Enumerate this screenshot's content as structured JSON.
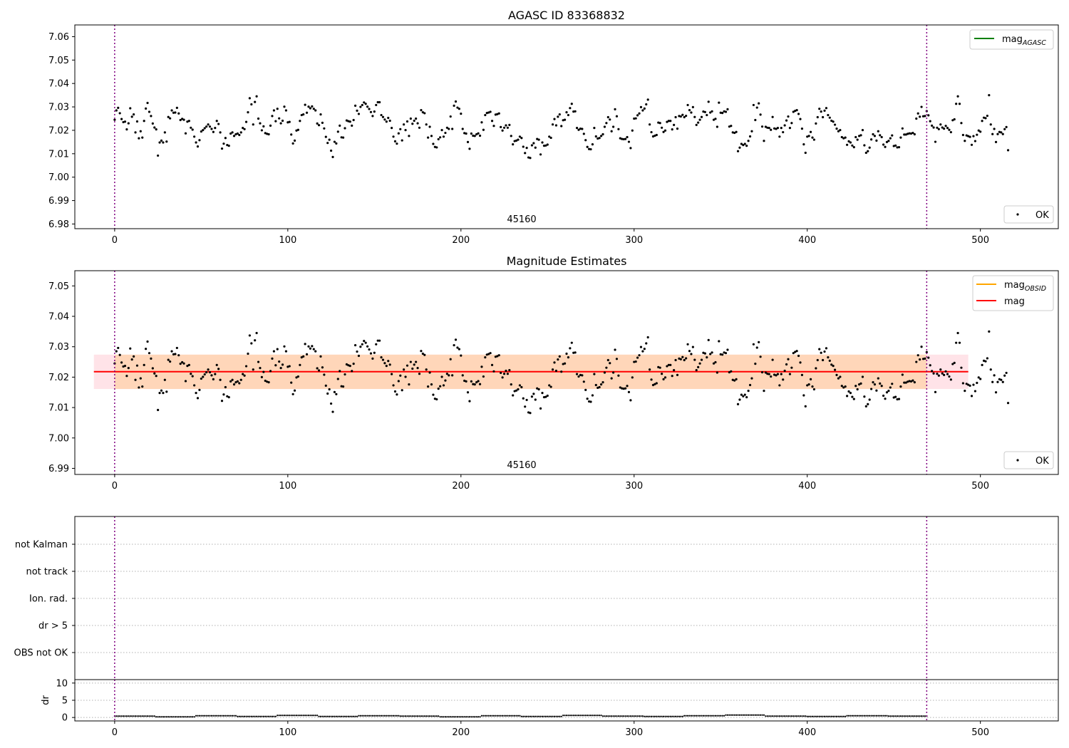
{
  "chart_data": [
    {
      "type": "scatter",
      "title": "AGASC ID 83368832",
      "xlim": [
        -23,
        545
      ],
      "ylim": [
        6.978,
        7.065
      ],
      "xticks": [
        "0",
        "100",
        "200",
        "300",
        "400",
        "500"
      ],
      "yticks": [
        "6.98",
        "6.99",
        "7.00",
        "7.01",
        "7.02",
        "7.03",
        "7.04",
        "7.05",
        "7.06"
      ],
      "obsid_label": "45160",
      "obs_boundaries": [
        0,
        469
      ],
      "legend_lines": [
        {
          "label_main": "mag",
          "label_sub": "AGASC",
          "color": "#008000"
        }
      ],
      "legend_points": [
        {
          "label": "OK"
        }
      ],
      "grid": false,
      "series": [
        {
          "name": "OK",
          "source": "shared.mag_values"
        }
      ]
    },
    {
      "type": "scatter",
      "title": "Magnitude Estimates",
      "xlim": [
        -23,
        545
      ],
      "ylim": [
        6.988,
        7.055
      ],
      "xticks": [
        "0",
        "100",
        "200",
        "300",
        "400",
        "500"
      ],
      "yticks": [
        "6.99",
        "7.00",
        "7.01",
        "7.02",
        "7.03",
        "7.04",
        "7.05"
      ],
      "obsid_label": "45160",
      "obs_boundaries": [
        0,
        469
      ],
      "mean_mag": 7.0218,
      "band_low": 7.0161,
      "band_high": 7.0274,
      "mean_line_x": [
        -12,
        493
      ],
      "legend_lines": [
        {
          "label_main": "mag",
          "label_sub": "OBSID",
          "color": "#ffa500"
        },
        {
          "label_main": "mag",
          "label_sub": "",
          "color": "#ff0000"
        }
      ],
      "legend_points": [
        {
          "label": "OK"
        }
      ],
      "grid": false,
      "series": [
        {
          "name": "OK",
          "source": "shared.mag_values"
        }
      ]
    },
    {
      "type": "scatter",
      "title": "",
      "xlim": [
        -23,
        545
      ],
      "categories": [
        "OBS not OK",
        "dr > 5",
        "Ion. rad.",
        "not track",
        "not Kalman"
      ],
      "obs_boundaries": [
        0,
        469
      ],
      "grid": true,
      "series": []
    },
    {
      "type": "scatter",
      "title": "",
      "xlim": [
        -23,
        545
      ],
      "ylim": [
        -1,
        11
      ],
      "ylabel": "dr",
      "xticks": [
        "0",
        "100",
        "200",
        "300",
        "400",
        "500"
      ],
      "yticks": [
        "0",
        "5",
        "10"
      ],
      "obs_boundaries": [
        0,
        469
      ],
      "grid": true,
      "series": [
        {
          "name": "dr",
          "x_range": [
            0,
            469
          ],
          "dr_values_by_segment": [
            0.4,
            0.2,
            0.5,
            0.3,
            0.6,
            0.3,
            0.5,
            0.4,
            0.2,
            0.5,
            0.3,
            0.6,
            0.4,
            0.3,
            0.5,
            0.7,
            0.4,
            0.3,
            0.5,
            0.4
          ]
        }
      ]
    }
  ],
  "shared": {
    "mag_values": [
      7.0245,
      7.0285,
      7.0296,
      7.0273,
      7.0248,
      7.0235,
      7.0237,
      7.0204,
      7.023,
      7.0294,
      7.0258,
      7.0268,
      7.0191,
      7.0238,
      7.0166,
      7.0196,
      7.0169,
      7.024,
      7.0293,
      7.0317,
      7.0279,
      7.0261,
      7.0229,
      7.0212,
      7.0204,
      7.0092,
      7.0148,
      7.0156,
      7.0148,
      7.0191,
      7.0152,
      7.0257,
      7.0251,
      7.0285,
      7.0275,
      7.0276,
      7.0296,
      7.0272,
      7.0244,
      7.0249,
      7.0245,
      7.0187,
      7.0237,
      7.024,
      7.0211,
      7.0203,
      7.0173,
      7.0148,
      7.0131,
      7.0158,
      7.0195,
      7.0201,
      7.0209,
      7.0216,
      7.0225,
      7.0216,
      7.0206,
      7.0193,
      7.021,
      7.024,
      7.0227,
      7.0191,
      7.0122,
      7.0143,
      7.0167,
      7.0137,
      7.0134,
      7.0186,
      7.0191,
      7.0176,
      7.0183,
      7.0186,
      7.018,
      7.0191,
      7.021,
      7.0205,
      7.0236,
      7.0277,
      7.0337,
      7.0311,
      7.0225,
      7.0321,
      7.0345,
      7.025,
      7.023,
      7.02,
      7.0217,
      7.0188,
      7.0185,
      7.0183,
      7.022,
      7.0261,
      7.0285,
      7.0239,
      7.0292,
      7.0251,
      7.023,
      7.0241,
      7.0301,
      7.0285,
      7.0234,
      7.0236,
      7.0182,
      7.0144,
      7.0156,
      7.0199,
      7.0202,
      7.024,
      7.0265,
      7.0268,
      7.0309,
      7.0275,
      7.0301,
      7.0294,
      7.0302,
      7.0292,
      7.0285,
      7.0229,
      7.0222,
      7.0268,
      7.0232,
      7.0208,
      7.0172,
      7.0146,
      7.016,
      7.0113,
      7.0086,
      7.0151,
      7.0144,
      7.0194,
      7.022,
      7.017,
      7.0169,
      7.0209,
      7.0242,
      7.0239,
      7.0237,
      7.022,
      7.0244,
      7.0305,
      7.0284,
      7.027,
      7.03,
      7.0308,
      7.0319,
      7.0313,
      7.0301,
      7.0291,
      7.0278,
      7.0261,
      7.028,
      7.0308,
      7.032,
      7.032,
      7.0265,
      7.0257,
      7.0246,
      7.0237,
      7.0253,
      7.0241,
      7.021,
      7.0173,
      7.0153,
      7.0143,
      7.0187,
      7.0205,
      7.0157,
      7.0225,
      7.0201,
      7.0238,
      7.0176,
      7.025,
      7.0228,
      7.0241,
      7.025,
      7.023,
      7.0211,
      7.0286,
      7.0277,
      7.0273,
      7.0225,
      7.0169,
      7.0215,
      7.0176,
      7.0142,
      7.0129,
      7.0127,
      7.0162,
      7.017,
      7.0201,
      7.0173,
      7.0189,
      7.0211,
      7.0206,
      7.0259,
      7.0206,
      7.0305,
      7.0323,
      7.0297,
      7.0292,
      7.0271,
      7.0206,
      7.0188,
      7.0186,
      7.015,
      7.0121,
      7.0186,
      7.0177,
      7.0176,
      7.0183,
      7.0187,
      7.0177,
      7.0234,
      7.0202,
      7.0265,
      7.0274,
      7.0276,
      7.0279,
      7.024,
      7.0219,
      7.0267,
      7.0269,
      7.0272,
      7.0214,
      7.0199,
      7.0211,
      7.0221,
      7.0211,
      7.0223,
      7.0176,
      7.014,
      7.0154,
      7.0156,
      7.016,
      7.0173,
      7.0167,
      7.013,
      7.0103,
      7.0125,
      7.0084,
      7.0082,
      7.0136,
      7.0145,
      7.0126,
      7.0163,
      7.016,
      7.0097,
      7.0148,
      7.0134,
      7.0135,
      7.0139,
      7.0173,
      7.0168,
      7.0225,
      7.0248,
      7.0221,
      7.0258,
      7.0268,
      7.0218,
      7.0243,
      7.0245,
      7.0277,
      7.0265,
      7.0295,
      7.0313,
      7.028,
      7.0281,
      7.021,
      7.0202,
      7.0207,
      7.0206,
      7.0185,
      7.0158,
      7.0129,
      7.012,
      7.0119,
      7.014,
      7.021,
      7.0174,
      7.0165,
      7.0167,
      7.0176,
      7.0183,
      7.0215,
      7.0231,
      7.0256,
      7.0246,
      7.0196,
      7.0215,
      7.029,
      7.026,
      7.0205,
      7.0166,
      7.0163,
      7.0162,
      7.0163,
      7.0171,
      7.0151,
      7.0124,
      7.0199,
      7.025,
      7.0251,
      7.0264,
      7.0272,
      7.0299,
      7.0285,
      7.0293,
      7.0311,
      7.0331,
      7.0225,
      7.0192,
      7.0174,
      7.0177,
      7.018,
      7.0233,
      7.0231,
      7.0211,
      7.0193,
      7.0199,
      7.0236,
      7.024,
      7.024,
      7.0204,
      7.0223,
      7.0256,
      7.0207,
      7.0261,
      7.0259,
      7.0266,
      7.0256,
      7.0262,
      7.0308,
      7.0286,
      7.0276,
      7.0299,
      7.0257,
      7.0223,
      7.0233,
      7.0245,
      7.0257,
      7.028,
      7.0278,
      7.0265,
      7.0322,
      7.0276,
      7.0281,
      7.0245,
      7.0249,
      7.0215,
      7.0318,
      7.0275,
      7.0274,
      7.0281,
      7.0279,
      7.029,
      7.0216,
      7.0219,
      7.0191,
      7.0189,
      7.0193,
      7.0111,
      7.0126,
      7.0142,
      7.0137,
      7.0142,
      7.0134,
      7.0155,
      7.0174,
      7.0196,
      7.0308,
      7.0244,
      7.0297,
      7.0315,
      7.0267,
      7.0216,
      7.0155,
      7.0215,
      7.0211,
      7.021,
      7.0202,
      7.0257,
      7.0208,
      7.0206,
      7.021,
      7.0173,
      7.021,
      7.0192,
      7.0221,
      7.0242,
      7.0259,
      7.021,
      7.0231,
      7.0279,
      7.0283,
      7.0286,
      7.027,
      7.0248,
      7.0207,
      7.014,
      7.0104,
      7.0173,
      7.0176,
      7.0193,
      7.0169,
      7.016,
      7.0229,
      7.0256,
      7.0292,
      7.028,
      7.0256,
      7.0284,
      7.0295,
      7.0265,
      7.0254,
      7.0241,
      7.0237,
      7.0224,
      7.0207,
      7.0196,
      7.0201,
      7.0171,
      7.0166,
      7.0169,
      7.0138,
      7.0153,
      7.0148,
      7.0135,
      7.0128,
      7.0171,
      7.016,
      7.0176,
      7.0179,
      7.0201,
      7.0136,
      7.0104,
      7.0111,
      7.0126,
      7.0161,
      7.0183,
      7.0176,
      7.0156,
      7.0196,
      7.0179,
      7.0171,
      7.0139,
      7.0129,
      7.015,
      7.0155,
      7.0166,
      7.0178,
      7.0133,
      7.0135,
      7.0127,
      7.0128,
      7.0169,
      7.0208,
      7.0182,
      7.0182,
      7.0185,
      7.0187,
      7.0186,
      7.0189,
      7.0183,
      7.025,
      7.0272,
      7.0258,
      7.03,
      7.026,
      7.0261,
      7.0282,
      7.0264,
      7.0239,
      7.022,
      7.0212,
      7.0151,
      7.0211,
      7.0205,
      7.0225,
      7.0212,
      7.0207,
      7.0219,
      7.021,
      7.0202,
      7.0192,
      7.0243,
      7.0247,
      7.0313,
      7.0345,
      7.0313,
      7.0231,
      7.018,
      7.0155,
      7.0178,
      7.0175,
      7.0172,
      7.0138,
      7.0175,
      7.0154,
      7.0181,
      7.0199,
      7.0194,
      7.024,
      7.0254,
      7.0252,
      7.0262,
      7.035,
      7.0225,
      7.0184,
      7.0206,
      7.015,
      7.0184,
      7.0193,
      7.0191,
      7.0184,
      7.0205,
      7.0214,
      7.0115
    ]
  }
}
